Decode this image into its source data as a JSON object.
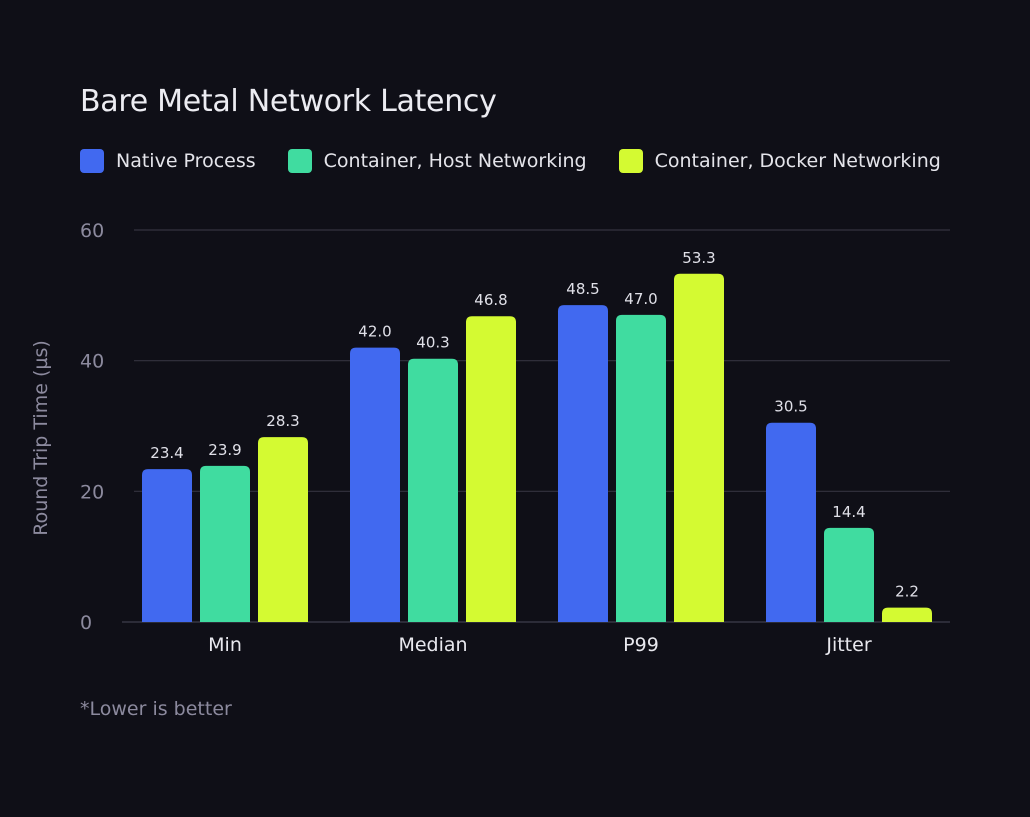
{
  "chart_data": {
    "type": "bar",
    "title": "Bare Metal Network Latency",
    "ylabel": "Round Trip Time (µs)",
    "xlabel": "",
    "ylim": [
      0,
      60
    ],
    "yticks": [
      0,
      20,
      40,
      60
    ],
    "categories": [
      "Min",
      "Median",
      "P99",
      "Jitter"
    ],
    "series": [
      {
        "name": "Native Process",
        "color": "#4169f0",
        "values": [
          23.4,
          42.0,
          48.5,
          30.5
        ],
        "labels": [
          "23.4",
          "42.0",
          "48.5",
          "30.5"
        ]
      },
      {
        "name": "Container, Host Networking",
        "color": "#40dca0",
        "values": [
          23.9,
          40.3,
          47.0,
          14.4
        ],
        "labels": [
          "23.9",
          "40.3",
          "47.0",
          "14.4"
        ]
      },
      {
        "name": "Container, Docker Networking",
        "color": "#d4fa32",
        "values": [
          28.3,
          46.8,
          53.3,
          2.2
        ],
        "labels": [
          "28.3",
          "46.8",
          "53.3",
          "2.2"
        ]
      }
    ],
    "legend_position": "top-left",
    "grid": true
  },
  "footnote": "*Lower is better",
  "icons": {
    "logo": "striped-arrow-logo-icon"
  }
}
